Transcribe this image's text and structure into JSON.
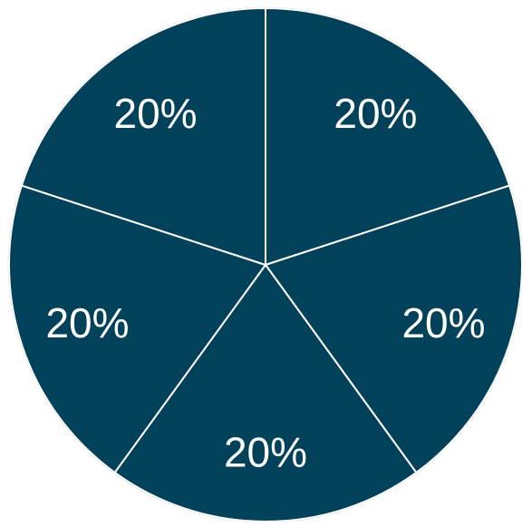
{
  "chart_data": {
    "type": "pie",
    "title": "",
    "categories": [
      "",
      "",
      "",
      "",
      ""
    ],
    "values": [
      20,
      20,
      20,
      20,
      20
    ],
    "labels": [
      "20%",
      "20%",
      "20%",
      "20%",
      "20%"
    ],
    "colors": [
      "#02415a",
      "#02415a",
      "#02415a",
      "#02415a",
      "#02415a"
    ],
    "start_angle_deg": 0,
    "direction": "clockwise",
    "legend": "none"
  }
}
